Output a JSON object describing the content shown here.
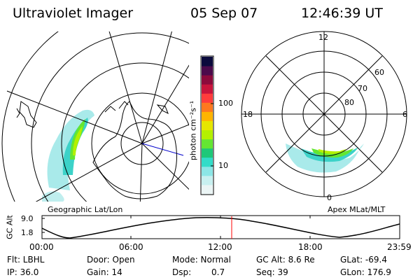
{
  "header": {
    "title": "Ultraviolet Imager",
    "date": "05 Sep 07",
    "time": "12:46:39 UT"
  },
  "left_panel": {
    "caption": "Geographic Lat/Lon"
  },
  "right_panel": {
    "caption": "Apex MLat/MLT",
    "mlt_labels": {
      "top": "12",
      "left": "18",
      "right": "6",
      "bottom": "0"
    },
    "lat_labels": [
      "80",
      "70",
      "60"
    ]
  },
  "colorbar": {
    "unit_label": "photon cm⁻²s⁻¹",
    "tick_labels": [
      "100",
      "10"
    ],
    "colors": [
      "#0a0a3c",
      "#4b0a4b",
      "#8c0a3c",
      "#c8143c",
      "#ff3c3c",
      "#ff781e",
      "#ffb400",
      "#e6e600",
      "#b4f000",
      "#64e632",
      "#1ec878",
      "#32dcc8",
      "#8ce6e6",
      "#c8f0f0",
      "#ebf5f5"
    ]
  },
  "alt_strip": {
    "axis_label": "GC Alt",
    "y_ticks": [
      "9.0",
      "1.8"
    ],
    "x_ticks": [
      "00:00",
      "06:00",
      "12:00",
      "18:00",
      "23:59"
    ],
    "current_marker_time": "12:46:39",
    "marker_color": "#ff0000"
  },
  "info": {
    "row1": {
      "flt": "Flt: LBHL",
      "door": "Door: Open",
      "mode": "Mode: Normal",
      "gcalt": "GC Alt: 8.6 Re",
      "glat": "GLat: -69.4"
    },
    "row2": {
      "ip": "IP: 36.0",
      "gain": "Gain: 14",
      "dsp_label": "Dsp:",
      "dsp_value": "0.7",
      "seq": "Seq: 39",
      "glon": "GLon: 176.9"
    }
  }
}
